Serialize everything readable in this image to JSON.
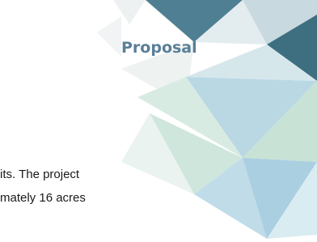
{
  "slide": {
    "title": "Proposal"
  },
  "body": {
    "lines": [
      "its. The project",
      "mately 16 acres"
    ]
  }
}
